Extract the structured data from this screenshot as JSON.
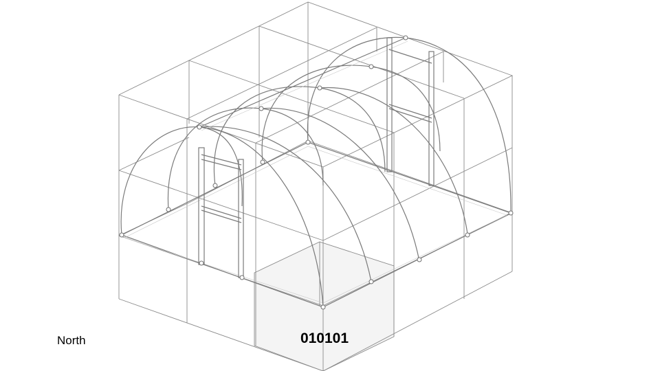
{
  "labels": {
    "direction": "North",
    "selected_cell_code": "010101"
  },
  "colors": {
    "grid_line": "#8a8a8a",
    "frame_pipe": "#7a7a7a",
    "highlight_cell": "#f4f4f4"
  }
}
